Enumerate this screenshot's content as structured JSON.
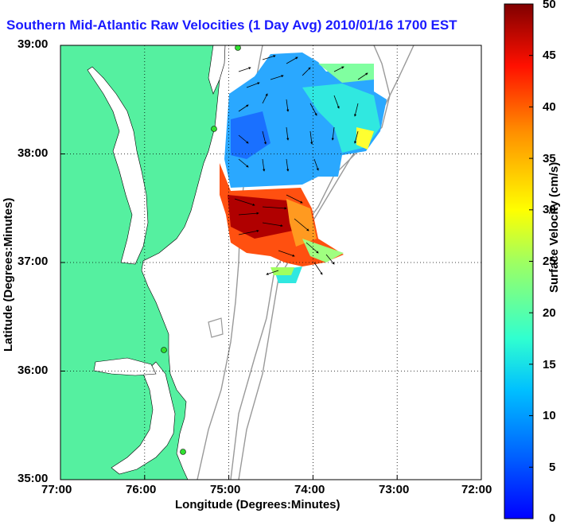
{
  "title": "Southern Mid-Atlantic Raw Velocities (1 Day Avg) 2010/01/16 1700 EST",
  "map": {
    "xlabel": "Longitude (Degrees:Minutes)",
    "ylabel": "Latitude (Degrees:Minutes)",
    "lon_ticks": [
      "77:00",
      "76:00",
      "75:00",
      "74:00",
      "73:00",
      "72:00"
    ],
    "lat_ticks": [
      "39:00",
      "38:00",
      "37:00",
      "36:00",
      "35:00"
    ],
    "lon_range": [
      -77,
      -72
    ],
    "lat_range": [
      35,
      39
    ],
    "land_color": "#55f0a0",
    "grid": "dotted"
  },
  "colorbar": {
    "label": "Surface Velocity (cm/s)",
    "ticks": [
      "0",
      "5",
      "10",
      "15",
      "20",
      "25",
      "30",
      "35",
      "40",
      "45",
      "50"
    ],
    "range": [
      0,
      50
    ],
    "colormap": "jet"
  }
}
